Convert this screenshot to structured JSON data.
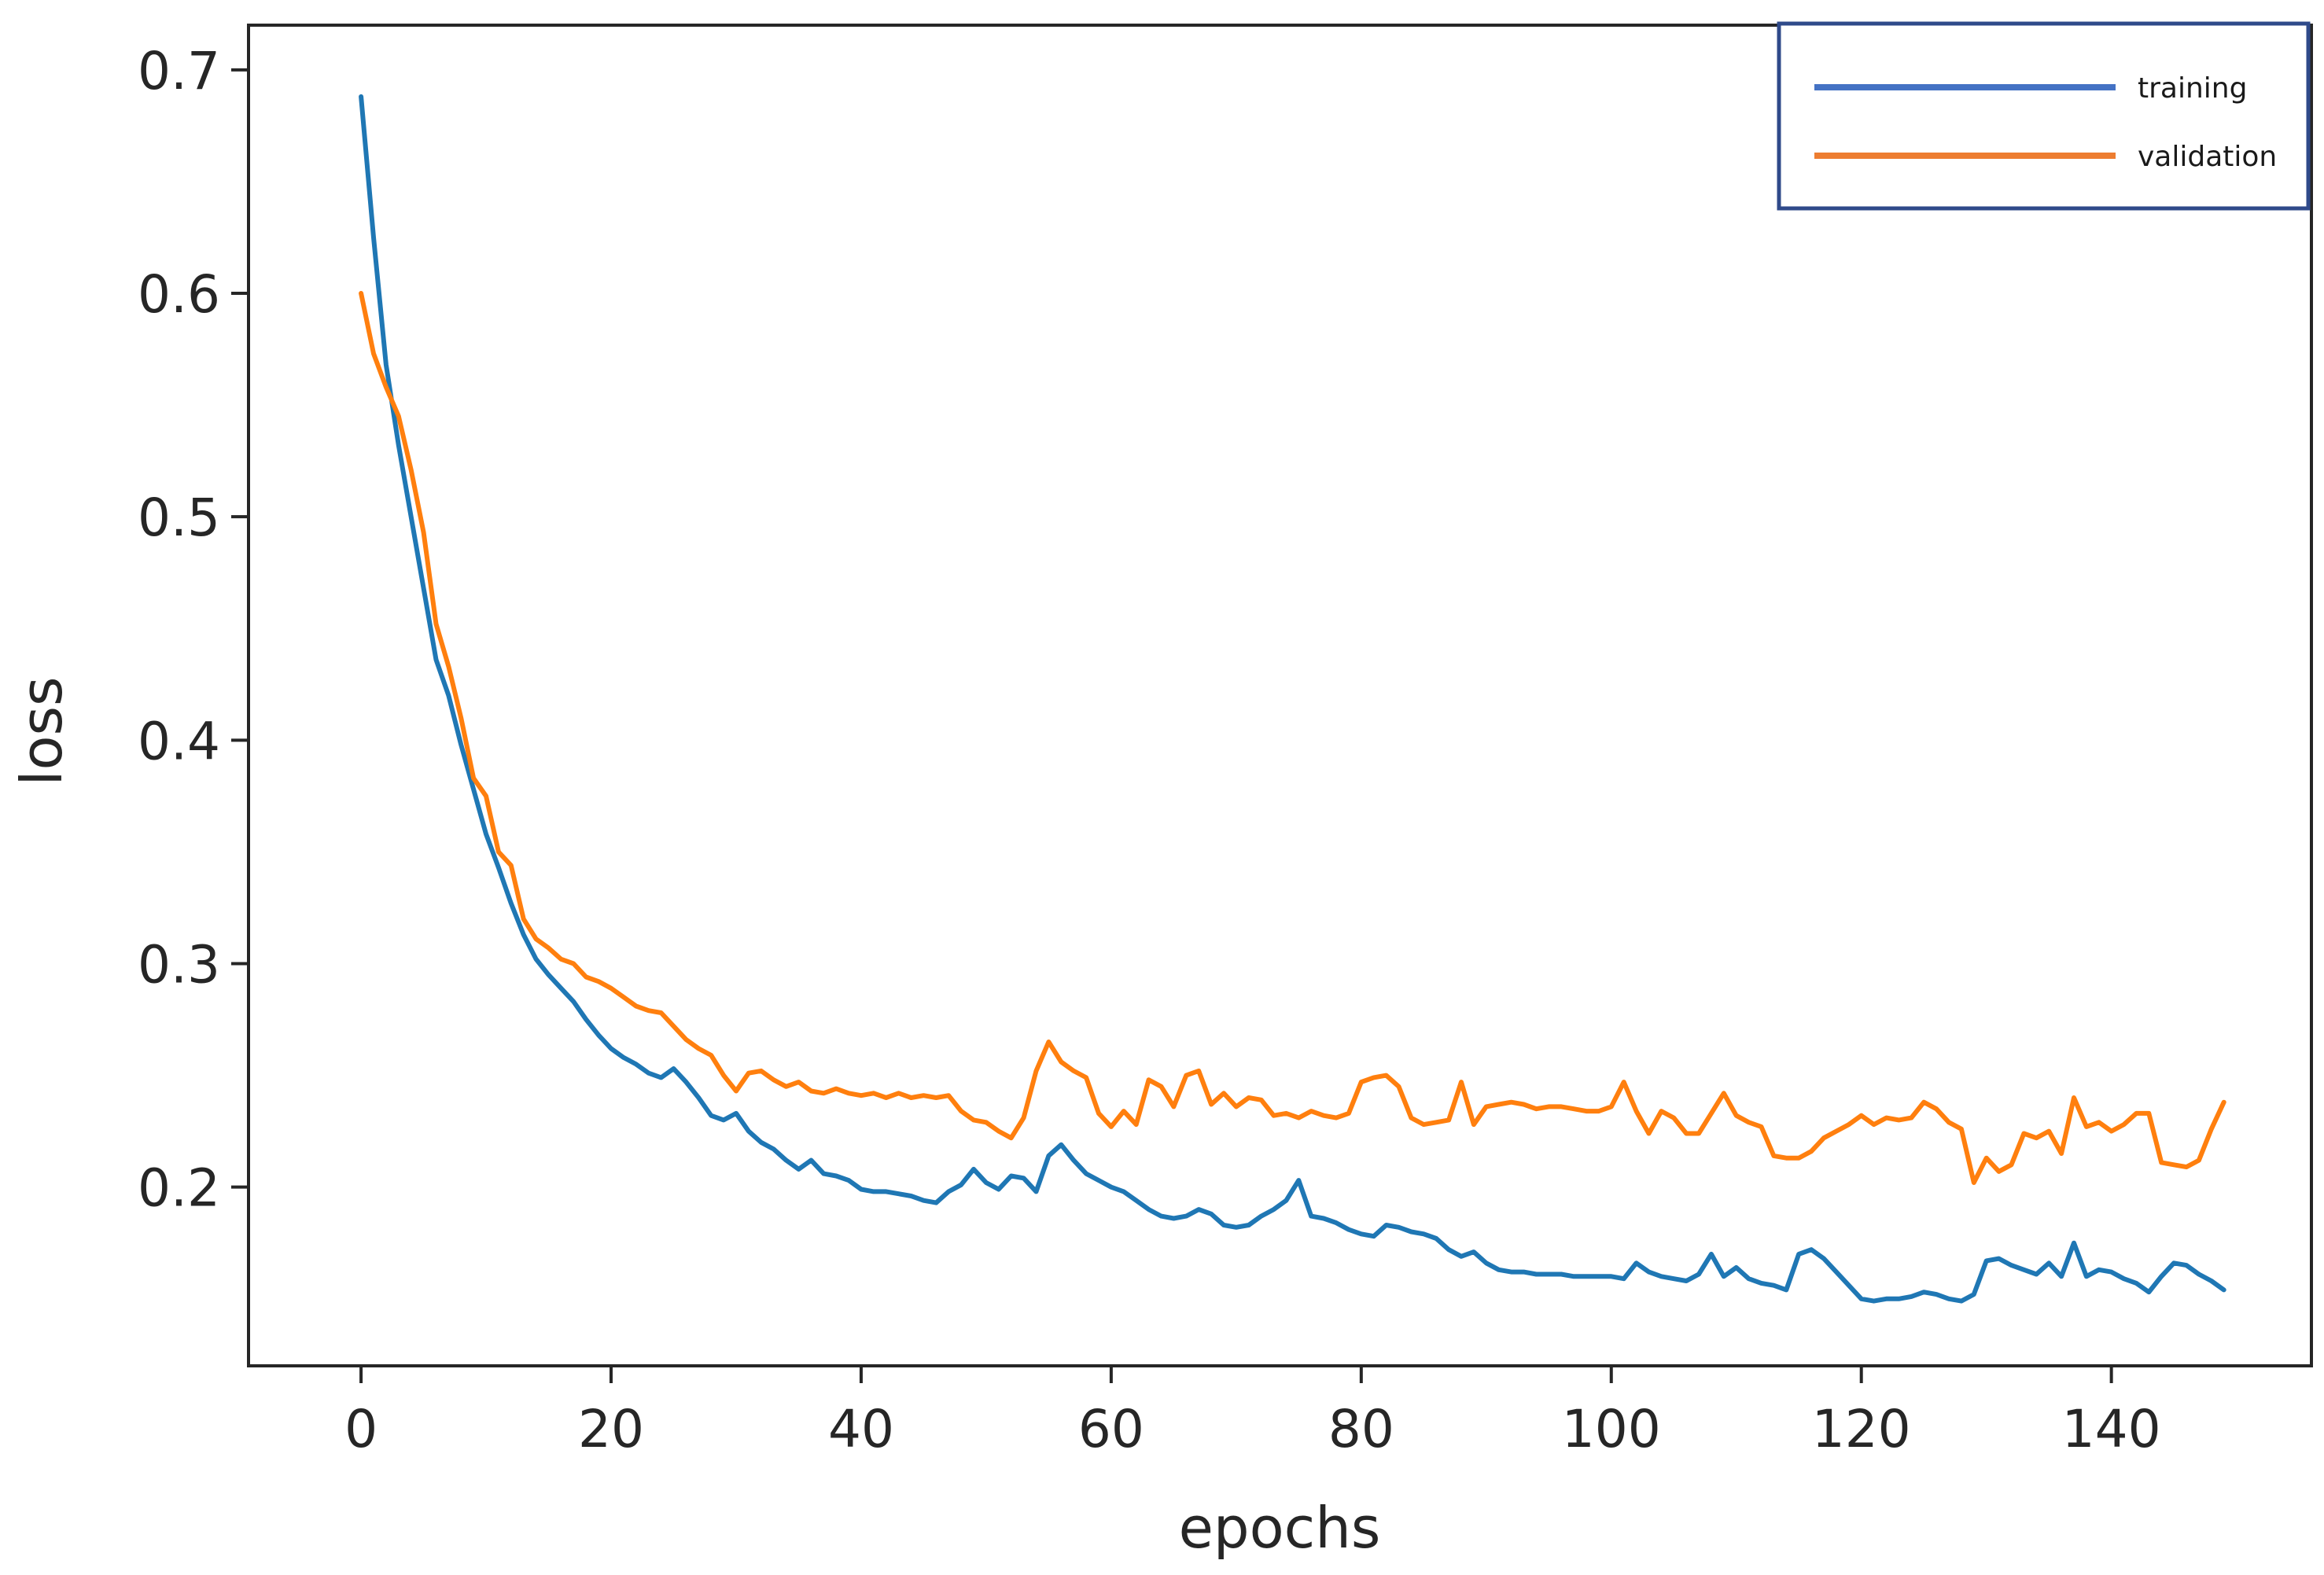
{
  "chart_data": {
    "type": "line",
    "title": "",
    "xlabel": "epochs",
    "ylabel": "loss",
    "xlim": [
      -9,
      156
    ],
    "ylim": [
      0.12,
      0.72
    ],
    "xticks": [
      0,
      20,
      40,
      60,
      80,
      100,
      120,
      140
    ],
    "yticks": [
      0.2,
      0.3,
      0.4,
      0.5,
      0.6,
      0.7
    ],
    "xtick_labels": [
      "0",
      "20",
      "40",
      "60",
      "80",
      "100",
      "120",
      "140"
    ],
    "ytick_labels": [
      "0.2",
      "0.3",
      "0.4",
      "0.5",
      "0.6",
      "0.7"
    ],
    "grid": false,
    "legend": {
      "placement": "top-right",
      "entries": [
        "training",
        "validation"
      ]
    },
    "series": [
      {
        "name": "training",
        "color": "#1f77b4",
        "legend_color": "#4472c4",
        "x": [
          0,
          1,
          2,
          3,
          4,
          5,
          6,
          7,
          8,
          9,
          10,
          11,
          12,
          13,
          14,
          15,
          16,
          17,
          18,
          19,
          20,
          21,
          22,
          23,
          24,
          25,
          26,
          27,
          28,
          29,
          30,
          31,
          32,
          33,
          34,
          35,
          36,
          37,
          38,
          39,
          40,
          41,
          42,
          43,
          44,
          45,
          46,
          47,
          48,
          49,
          50,
          51,
          52,
          53,
          54,
          55,
          56,
          57,
          58,
          59,
          60,
          61,
          62,
          63,
          64,
          65,
          66,
          67,
          68,
          69,
          70,
          71,
          72,
          73,
          74,
          75,
          76,
          77,
          78,
          79,
          80,
          81,
          82,
          83,
          84,
          85,
          86,
          87,
          88,
          89,
          90,
          91,
          92,
          93,
          94,
          95,
          96,
          97,
          98,
          99,
          100,
          101,
          102,
          103,
          104,
          105,
          106,
          107,
          108,
          109,
          110,
          111,
          112,
          113,
          114,
          115,
          116,
          117,
          118,
          119,
          120,
          121,
          122,
          123,
          124,
          125,
          126,
          127,
          128,
          129,
          130,
          131,
          132,
          133,
          134,
          135,
          136,
          137,
          138,
          139,
          140,
          141,
          142,
          143,
          144,
          145,
          146,
          147,
          148,
          149
        ],
        "y": [
          0.688,
          0.625,
          0.568,
          0.532,
          0.5,
          0.468,
          0.436,
          0.42,
          0.398,
          0.378,
          0.358,
          0.343,
          0.327,
          0.313,
          0.302,
          0.295,
          0.289,
          0.283,
          0.275,
          0.268,
          0.262,
          0.258,
          0.255,
          0.251,
          0.249,
          0.253,
          0.247,
          0.24,
          0.232,
          0.23,
          0.233,
          0.225,
          0.22,
          0.217,
          0.212,
          0.208,
          0.212,
          0.206,
          0.205,
          0.203,
          0.199,
          0.198,
          0.198,
          0.197,
          0.196,
          0.194,
          0.193,
          0.198,
          0.201,
          0.208,
          0.202,
          0.199,
          0.205,
          0.204,
          0.198,
          0.214,
          0.219,
          0.212,
          0.206,
          0.203,
          0.2,
          0.198,
          0.194,
          0.19,
          0.187,
          0.186,
          0.187,
          0.19,
          0.188,
          0.183,
          0.182,
          0.183,
          0.187,
          0.19,
          0.194,
          0.203,
          0.187,
          0.186,
          0.184,
          0.181,
          0.179,
          0.178,
          0.183,
          0.182,
          0.18,
          0.179,
          0.177,
          0.172,
          0.169,
          0.171,
          0.166,
          0.163,
          0.162,
          0.162,
          0.161,
          0.161,
          0.161,
          0.16,
          0.16,
          0.16,
          0.16,
          0.159,
          0.166,
          0.162,
          0.16,
          0.159,
          0.158,
          0.161,
          0.17,
          0.16,
          0.164,
          0.159,
          0.157,
          0.156,
          0.154,
          0.17,
          0.172,
          0.168,
          0.162,
          0.156,
          0.15,
          0.149,
          0.15,
          0.15,
          0.151,
          0.153,
          0.152,
          0.15,
          0.149,
          0.152,
          0.167,
          0.168,
          0.165,
          0.163,
          0.161,
          0.166,
          0.16,
          0.175,
          0.16,
          0.163,
          0.162,
          0.159,
          0.157,
          0.153,
          0.16,
          0.166,
          0.165,
          0.161,
          0.158,
          0.154
        ]
      },
      {
        "name": "validation",
        "color": "#ff7f0e",
        "legend_color": "#ed7d31",
        "x": [
          0,
          1,
          2,
          3,
          4,
          5,
          6,
          7,
          8,
          9,
          10,
          11,
          12,
          13,
          14,
          15,
          16,
          17,
          18,
          19,
          20,
          21,
          22,
          23,
          24,
          25,
          26,
          27,
          28,
          29,
          30,
          31,
          32,
          33,
          34,
          35,
          36,
          37,
          38,
          39,
          40,
          41,
          42,
          43,
          44,
          45,
          46,
          47,
          48,
          49,
          50,
          51,
          52,
          53,
          54,
          55,
          56,
          57,
          58,
          59,
          60,
          61,
          62,
          63,
          64,
          65,
          66,
          67,
          68,
          69,
          70,
          71,
          72,
          73,
          74,
          75,
          76,
          77,
          78,
          79,
          80,
          81,
          82,
          83,
          84,
          85,
          86,
          87,
          88,
          89,
          90,
          91,
          92,
          93,
          94,
          95,
          96,
          97,
          98,
          99,
          100,
          101,
          102,
          103,
          104,
          105,
          106,
          107,
          108,
          109,
          110,
          111,
          112,
          113,
          114,
          115,
          116,
          117,
          118,
          119,
          120,
          121,
          122,
          123,
          124,
          125,
          126,
          127,
          128,
          129,
          130,
          131,
          132,
          133,
          134,
          135,
          136,
          137,
          138,
          139,
          140,
          141,
          142,
          143,
          144,
          145,
          146,
          147,
          148,
          149
        ],
        "y": [
          0.6,
          0.573,
          0.558,
          0.545,
          0.521,
          0.493,
          0.452,
          0.433,
          0.41,
          0.383,
          0.375,
          0.35,
          0.344,
          0.32,
          0.311,
          0.307,
          0.302,
          0.3,
          0.294,
          0.292,
          0.289,
          0.285,
          0.281,
          0.279,
          0.278,
          0.272,
          0.266,
          0.262,
          0.259,
          0.25,
          0.243,
          0.251,
          0.252,
          0.248,
          0.245,
          0.247,
          0.243,
          0.242,
          0.244,
          0.242,
          0.241,
          0.242,
          0.24,
          0.242,
          0.24,
          0.241,
          0.24,
          0.241,
          0.234,
          0.23,
          0.229,
          0.225,
          0.222,
          0.231,
          0.252,
          0.265,
          0.256,
          0.252,
          0.249,
          0.233,
          0.227,
          0.234,
          0.228,
          0.248,
          0.245,
          0.236,
          0.25,
          0.252,
          0.237,
          0.242,
          0.236,
          0.24,
          0.239,
          0.232,
          0.233,
          0.231,
          0.234,
          0.232,
          0.231,
          0.233,
          0.247,
          0.249,
          0.25,
          0.245,
          0.231,
          0.228,
          0.229,
          0.23,
          0.247,
          0.228,
          0.236,
          0.237,
          0.238,
          0.237,
          0.235,
          0.236,
          0.236,
          0.235,
          0.234,
          0.234,
          0.236,
          0.247,
          0.234,
          0.224,
          0.234,
          0.231,
          0.224,
          0.224,
          0.233,
          0.242,
          0.232,
          0.229,
          0.227,
          0.214,
          0.213,
          0.213,
          0.216,
          0.222,
          0.225,
          0.228,
          0.232,
          0.228,
          0.231,
          0.23,
          0.231,
          0.238,
          0.235,
          0.229,
          0.226,
          0.202,
          0.213,
          0.207,
          0.21,
          0.224,
          0.222,
          0.225,
          0.215,
          0.24,
          0.227,
          0.229,
          0.225,
          0.228,
          0.233,
          0.233,
          0.211,
          0.21,
          0.209,
          0.212,
          0.226,
          0.238
        ]
      }
    ]
  }
}
